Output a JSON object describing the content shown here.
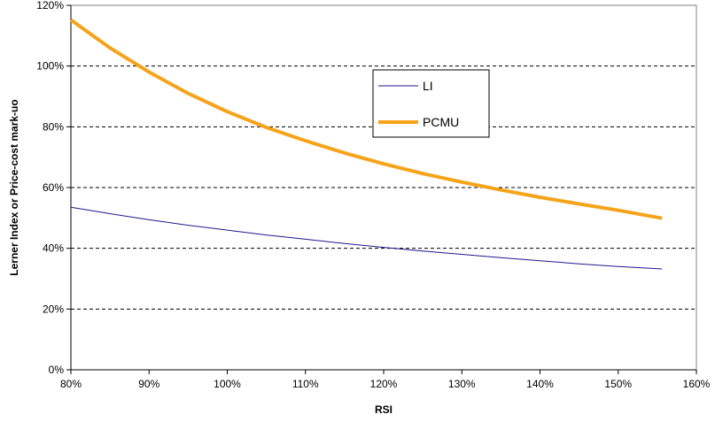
{
  "chart_data": {
    "type": "line",
    "xlabel": "RSI",
    "ylabel": "Lerner Index or Price-cost mark-uo",
    "xlim": [
      0.8,
      1.6
    ],
    "ylim": [
      0,
      1.2
    ],
    "x_ticks": [
      "80%",
      "90%",
      "100%",
      "110%",
      "120%",
      "130%",
      "140%",
      "150%",
      "160%"
    ],
    "y_ticks": [
      "0%",
      "20%",
      "40%",
      "60%",
      "80%",
      "100%",
      "120%"
    ],
    "grid": "horizontal-dashed",
    "legend_position": "upper-middle",
    "x": [
      0.8,
      0.85,
      0.9,
      0.95,
      1.0,
      1.05,
      1.1,
      1.15,
      1.2,
      1.25,
      1.3,
      1.35,
      1.4,
      1.45,
      1.5,
      1.556
    ],
    "series": [
      {
        "name": "LI",
        "color": "#1a1a8c",
        "values": [
          0.535,
          0.514,
          0.494,
          0.476,
          0.46,
          0.444,
          0.43,
          0.416,
          0.403,
          0.391,
          0.38,
          0.369,
          0.359,
          0.349,
          0.34,
          0.332
        ]
      },
      {
        "name": "PCMU",
        "color": "#f5a31a",
        "values": [
          1.152,
          1.06,
          0.98,
          0.91,
          0.85,
          0.798,
          0.754,
          0.714,
          0.678,
          0.646,
          0.618,
          0.592,
          0.568,
          0.546,
          0.525,
          0.499
        ]
      }
    ]
  }
}
